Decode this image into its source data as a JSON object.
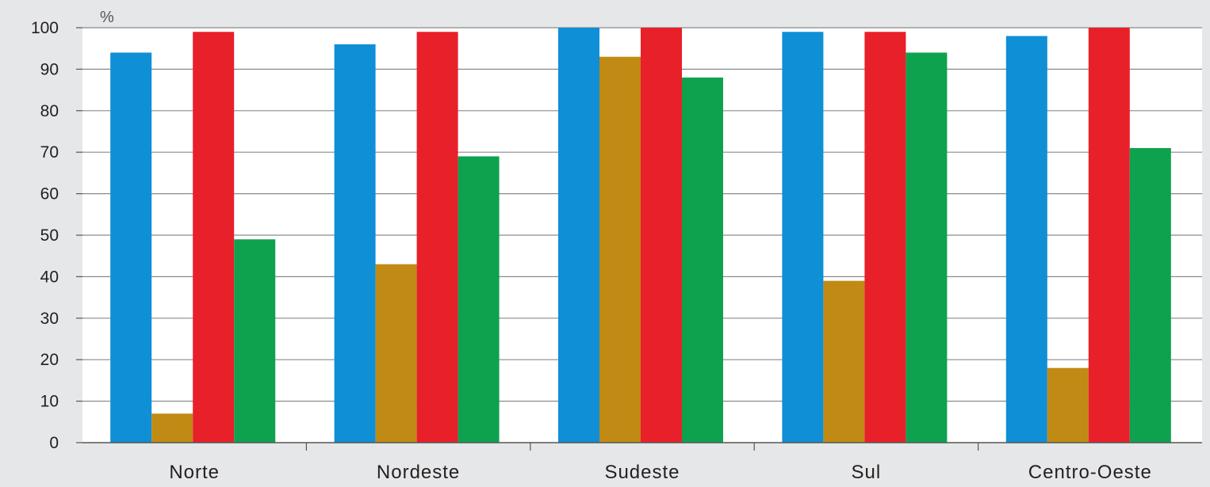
{
  "chart_data": {
    "type": "bar",
    "unit_label": "%",
    "categories": [
      "Norte",
      "Nordeste",
      "Sudeste",
      "Sul",
      "Centro-Oeste"
    ],
    "series": [
      {
        "color": "#0f8fd6",
        "values": [
          94,
          96,
          100,
          99,
          98
        ]
      },
      {
        "color": "#c08a14",
        "values": [
          7,
          43,
          93,
          39,
          18
        ]
      },
      {
        "color": "#e8202a",
        "values": [
          99,
          99,
          100,
          99,
          100
        ]
      },
      {
        "color": "#0ea24e",
        "values": [
          49,
          69,
          88,
          94,
          71
        ]
      }
    ],
    "ylim": [
      0,
      100
    ],
    "yticks": [
      "0",
      "10",
      "20",
      "30",
      "40",
      "50",
      "60",
      "70",
      "80",
      "90",
      "100"
    ],
    "grid": true,
    "title": "",
    "xlabel": "",
    "ylabel": ""
  }
}
